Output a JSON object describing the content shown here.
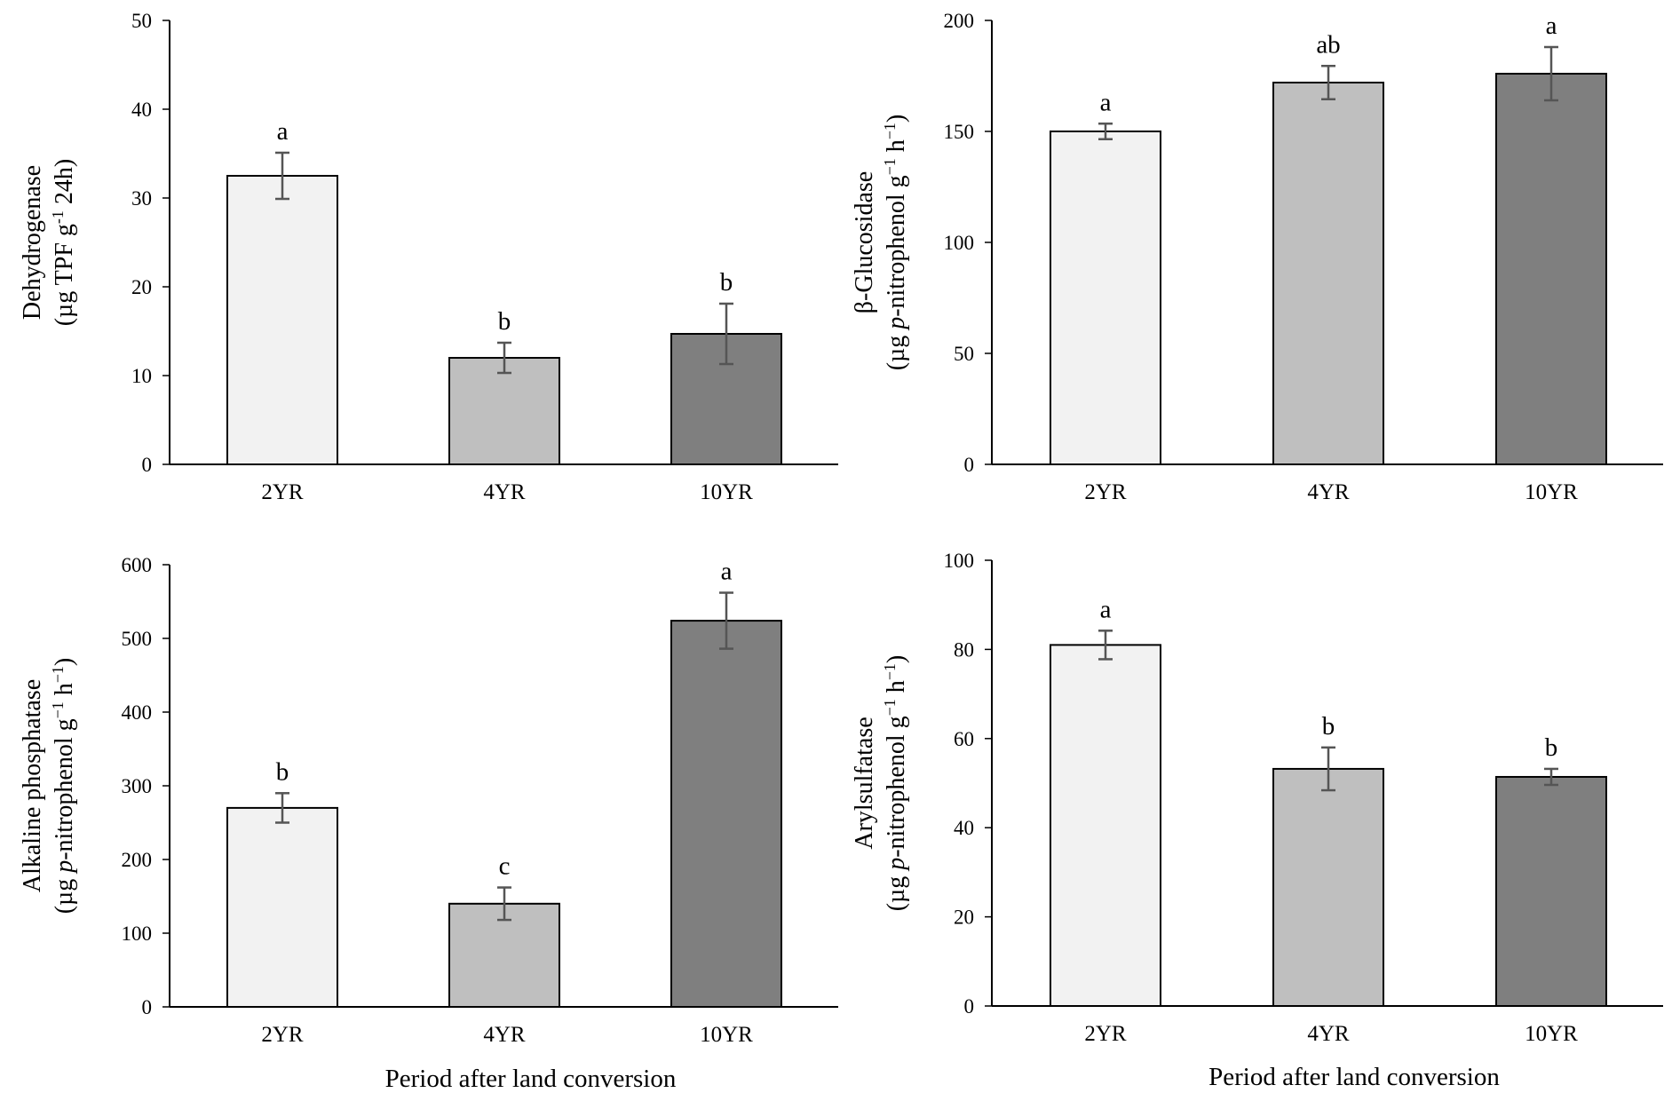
{
  "colors": {
    "2YR": "#f2f2f2",
    "4YR": "#bfbfbf",
    "10YR": "#7f7f7f"
  },
  "chart_data": [
    {
      "type": "bar",
      "categories": [
        "2YR",
        "4YR",
        "10YR"
      ],
      "values": [
        32.5,
        12.0,
        14.7
      ],
      "errors": [
        2.6,
        1.7,
        3.4
      ],
      "letters": [
        "a",
        "b",
        "b"
      ],
      "ylim": [
        0,
        50
      ],
      "yticks": [
        0,
        10,
        20,
        30,
        40,
        50
      ],
      "ylabel_line1": "Dehydrogenase",
      "ylabel_line2": [
        "(µg TPF g",
        "-1",
        " 24h)"
      ],
      "xlabel": "",
      "grid": false
    },
    {
      "type": "bar",
      "categories": [
        "2YR",
        "4YR",
        "10YR"
      ],
      "values": [
        150,
        172,
        176
      ],
      "errors": [
        3.5,
        7.5,
        12
      ],
      "letters": [
        "a",
        "ab",
        "a"
      ],
      "ylim": [
        0,
        200
      ],
      "yticks": [
        0,
        50,
        100,
        150,
        200
      ],
      "ylabel_line1": "β-Glucosidase",
      "ylabel_line2": [
        "(µg ",
        "p",
        "-nitrophenol  g",
        "−1",
        " h",
        "−1",
        ")"
      ],
      "xlabel": "",
      "grid": false
    },
    {
      "type": "bar",
      "categories": [
        "2YR",
        "4YR",
        "10YR"
      ],
      "values": [
        270,
        140,
        524
      ],
      "errors": [
        20,
        22,
        38
      ],
      "letters": [
        "b",
        "c",
        "a"
      ],
      "ylim": [
        0,
        600
      ],
      "yticks": [
        0,
        100,
        200,
        300,
        400,
        500,
        600
      ],
      "ylabel_line1": "Alkaline phosphatase",
      "ylabel_line2": [
        "(µg ",
        "p",
        "-nitrophenol  g",
        "−1",
        " h",
        "−1",
        ")"
      ],
      "xlabel": "Period after land conversion",
      "grid": false
    },
    {
      "type": "bar",
      "categories": [
        "2YR",
        "4YR",
        "10YR"
      ],
      "values": [
        81,
        53.2,
        51.4
      ],
      "errors": [
        3.2,
        4.8,
        1.8
      ],
      "letters": [
        "a",
        "b",
        "b"
      ],
      "ylim": [
        0,
        100
      ],
      "yticks": [
        0,
        20,
        40,
        60,
        80,
        100
      ],
      "ylabel_line1": "Arylsulfatase",
      "ylabel_line2": [
        "(µg ",
        "p",
        "-nitrophenol  g",
        "−1",
        " h",
        "−1",
        ")"
      ],
      "xlabel": "Period after land conversion",
      "grid": false
    }
  ]
}
